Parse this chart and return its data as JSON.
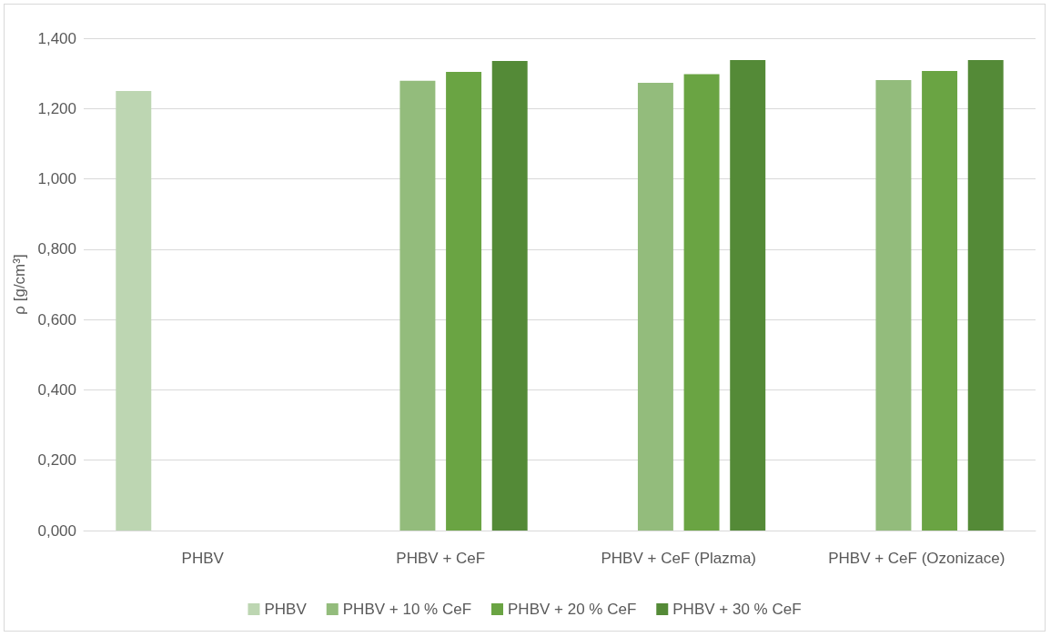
{
  "chart_data": {
    "type": "bar",
    "ylabel": "ρ [g/cm³]",
    "categories": [
      "PHBV",
      "PHBV + CeF",
      "PHBV + CeF (Plazma)",
      "PHBV + CeF (Ozonizace)"
    ],
    "series": [
      {
        "name": "PHBV",
        "color": "#bdd6b2",
        "values": [
          1.25,
          null,
          null,
          null
        ]
      },
      {
        "name": "PHBV + 10 % CeF",
        "color": "#93bc7c",
        "values": [
          null,
          1.279,
          1.273,
          1.281
        ]
      },
      {
        "name": "PHBV + 20 % CeF",
        "color": "#6aa443",
        "values": [
          null,
          1.304,
          1.298,
          1.307
        ]
      },
      {
        "name": "PHBV + 30 % CeF",
        "color": "#548a37",
        "values": [
          null,
          1.335,
          1.338,
          1.338
        ]
      }
    ],
    "ylim": [
      0,
      1.4
    ],
    "yticks": [
      {
        "value": 0,
        "label": "0,000"
      },
      {
        "value": 0.2,
        "label": "0,200"
      },
      {
        "value": 0.4,
        "label": "0,400"
      },
      {
        "value": 0.6,
        "label": "0,600"
      },
      {
        "value": 0.8,
        "label": "0,800"
      },
      {
        "value": 1.0,
        "label": "1,000"
      },
      {
        "value": 1.2,
        "label": "1,200"
      },
      {
        "value": 1.4,
        "label": "1,400"
      }
    ],
    "grid": "y",
    "legend": "bottom"
  }
}
